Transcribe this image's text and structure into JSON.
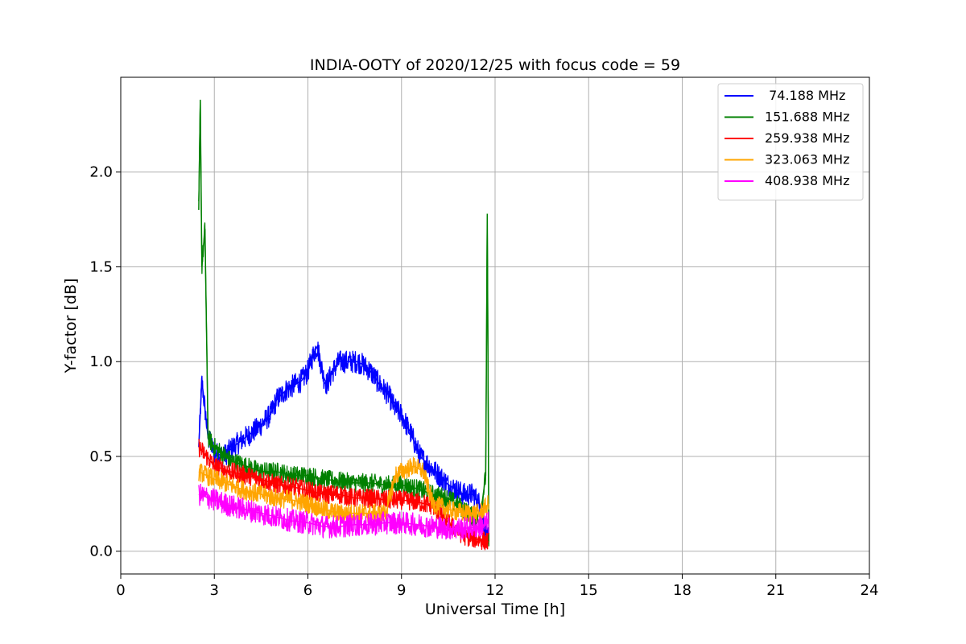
{
  "chart_data": {
    "type": "line",
    "title": "INDIA-OOTY of 2020/12/25 with focus code = 59",
    "xlabel": "Universal Time [h]",
    "ylabel": "Y-factor [dB]",
    "xlim": [
      0,
      24
    ],
    "ylim": [
      -0.12,
      2.5
    ],
    "xticks": [
      0,
      3,
      6,
      9,
      12,
      15,
      18,
      21,
      24
    ],
    "yticks": [
      0.0,
      0.5,
      1.0,
      1.5,
      2.0
    ],
    "xtick_labels": [
      "0",
      "3",
      "6",
      "9",
      "12",
      "15",
      "18",
      "21",
      "24"
    ],
    "ytick_labels": [
      "0.0",
      "0.5",
      "1.0",
      "1.5",
      "2.0"
    ],
    "grid": true,
    "legend_position": "top-right",
    "series": [
      {
        "name": " 74.188 MHz",
        "color": "#0000ff",
        "x": [
          2.5,
          2.6,
          2.8,
          3.0,
          3.3,
          3.6,
          4.0,
          4.4,
          4.8,
          5.0,
          5.3,
          5.6,
          5.8,
          6.0,
          6.2,
          6.3,
          6.5,
          6.6,
          6.8,
          7.0,
          7.3,
          7.6,
          7.8,
          8.0,
          8.3,
          8.6,
          8.8,
          9.0,
          9.3,
          9.6,
          9.9,
          10.2,
          10.5,
          10.8,
          11.0,
          11.3,
          11.5,
          11.8
        ],
        "y": [
          0.55,
          0.9,
          0.6,
          0.52,
          0.5,
          0.55,
          0.6,
          0.65,
          0.72,
          0.8,
          0.85,
          0.88,
          0.9,
          0.95,
          1.05,
          1.08,
          0.92,
          0.88,
          0.95,
          1.0,
          1.0,
          1.0,
          0.98,
          0.95,
          0.88,
          0.82,
          0.75,
          0.72,
          0.62,
          0.5,
          0.45,
          0.4,
          0.35,
          0.32,
          0.3,
          0.3,
          0.25,
          0.05
        ]
      },
      {
        "name": "151.688 MHz",
        "color": "#008000",
        "x": [
          2.5,
          2.55,
          2.6,
          2.7,
          2.8,
          3.0,
          3.5,
          4.0,
          4.5,
          5.0,
          5.5,
          6.0,
          6.5,
          7.0,
          7.5,
          8.0,
          8.5,
          9.0,
          9.5,
          10.0,
          10.5,
          11.0,
          11.5,
          11.7,
          11.75,
          11.8
        ],
        "y": [
          1.8,
          2.38,
          1.5,
          1.7,
          0.6,
          0.55,
          0.48,
          0.45,
          0.42,
          0.42,
          0.4,
          0.4,
          0.38,
          0.37,
          0.36,
          0.36,
          0.35,
          0.35,
          0.33,
          0.3,
          0.28,
          0.22,
          0.15,
          0.4,
          1.78,
          0.05
        ]
      },
      {
        "name": "259.938 MHz",
        "color": "#ff0000",
        "x": [
          2.5,
          3.0,
          3.5,
          4.0,
          4.5,
          5.0,
          5.5,
          6.0,
          6.5,
          7.0,
          7.5,
          8.0,
          8.5,
          9.0,
          9.5,
          10.0,
          10.5,
          11.0,
          11.5,
          11.8
        ],
        "y": [
          0.55,
          0.45,
          0.42,
          0.4,
          0.38,
          0.35,
          0.34,
          0.32,
          0.3,
          0.3,
          0.28,
          0.28,
          0.27,
          0.27,
          0.26,
          0.24,
          0.15,
          0.08,
          0.06,
          0.05
        ]
      },
      {
        "name": "323.063 MHz",
        "color": "#ffa500",
        "x": [
          2.5,
          3.0,
          3.5,
          4.0,
          4.5,
          5.0,
          5.5,
          6.0,
          6.5,
          7.0,
          7.5,
          8.0,
          8.5,
          8.8,
          9.0,
          9.4,
          9.7,
          10.0,
          10.5,
          11.0,
          11.5,
          11.8
        ],
        "y": [
          0.42,
          0.38,
          0.35,
          0.32,
          0.3,
          0.28,
          0.27,
          0.25,
          0.22,
          0.2,
          0.2,
          0.2,
          0.2,
          0.4,
          0.42,
          0.45,
          0.42,
          0.25,
          0.22,
          0.2,
          0.2,
          0.25
        ]
      },
      {
        "name": "408.938 MHz",
        "color": "#ff00ff",
        "x": [
          2.5,
          3.0,
          3.5,
          4.0,
          4.5,
          5.0,
          5.5,
          6.0,
          6.5,
          7.0,
          7.5,
          8.0,
          8.5,
          9.0,
          9.5,
          10.0,
          10.5,
          11.0,
          11.5,
          11.8
        ],
        "y": [
          0.3,
          0.27,
          0.24,
          0.22,
          0.2,
          0.18,
          0.16,
          0.15,
          0.13,
          0.13,
          0.14,
          0.14,
          0.15,
          0.15,
          0.14,
          0.13,
          0.12,
          0.12,
          0.13,
          0.15
        ]
      }
    ]
  }
}
